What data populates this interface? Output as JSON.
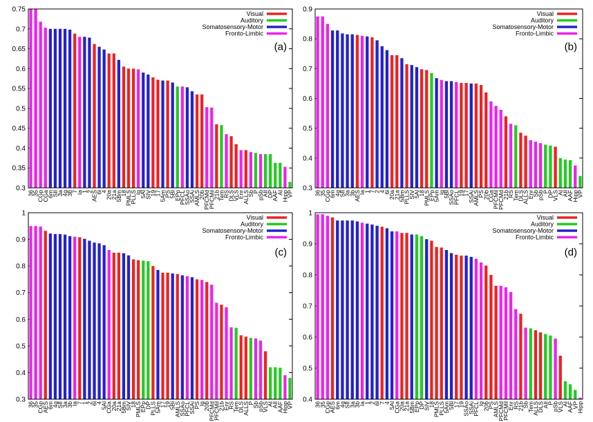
{
  "chart_data": [
    {
      "type": "bar",
      "label": "(a)",
      "legend_position": "upper right",
      "legend": [
        {
          "name": "Visual",
          "color": "#ee2222"
        },
        {
          "name": "Auditory",
          "color": "#22cc22"
        },
        {
          "name": "Somatosensory-Motor",
          "color": "#2222cc"
        },
        {
          "name": "Fronto-Limbic",
          "color": "#ee22ee"
        }
      ],
      "ylim": [
        0.3,
        0.75
      ],
      "yticks": [
        0.3,
        0.35,
        0.4,
        0.45,
        0.5,
        0.55,
        0.6,
        0.65,
        0.7,
        0.75
      ],
      "categories": [
        "36",
        "35",
        "CGp",
        "CGa",
        "6m",
        "SII",
        "3a",
        "4g",
        "3b",
        "7",
        "Ia",
        "1",
        "2",
        "AES",
        "6l",
        "4",
        "20a",
        "21a",
        "5Bm",
        "18",
        "PMLS",
        "PLLS",
        "Ig",
        "5Al",
        "SIV",
        "19",
        "17",
        "5Am",
        "PS",
        "5Bl",
        "EPp",
        "PFCL",
        "SSAo",
        "SSAi",
        "AMLS",
        "20b",
        "PFCMd",
        "PFCMil",
        "21b",
        "Tem",
        "RS",
        "DLS",
        "VLS",
        "Enr",
        "ALLS",
        "Sb",
        "P",
        "pSb",
        "AII",
        "DP",
        "AAF",
        "AI",
        "Hipp",
        "VP"
      ],
      "values": [
        0.75,
        0.75,
        0.718,
        0.703,
        0.7,
        0.7,
        0.7,
        0.7,
        0.698,
        0.688,
        0.68,
        0.68,
        0.678,
        0.662,
        0.655,
        0.648,
        0.638,
        0.638,
        0.622,
        0.605,
        0.6,
        0.6,
        0.598,
        0.59,
        0.585,
        0.578,
        0.572,
        0.57,
        0.57,
        0.565,
        0.555,
        0.555,
        0.553,
        0.543,
        0.535,
        0.535,
        0.503,
        0.502,
        0.46,
        0.458,
        0.435,
        0.43,
        0.41,
        0.395,
        0.395,
        0.39,
        0.388,
        0.385,
        0.385,
        0.385,
        0.363,
        0.363,
        0.353,
        0.315
      ],
      "colors": [
        "#ee22ee",
        "#ee22ee",
        "#ee22ee",
        "#ee22ee",
        "#2222cc",
        "#2222cc",
        "#2222cc",
        "#2222cc",
        "#2222cc",
        "#ee2222",
        "#ee22ee",
        "#2222cc",
        "#2222cc",
        "#ee2222",
        "#2222cc",
        "#2222cc",
        "#ee2222",
        "#ee2222",
        "#2222cc",
        "#ee2222",
        "#ee2222",
        "#ee2222",
        "#ee22ee",
        "#2222cc",
        "#2222cc",
        "#ee2222",
        "#ee2222",
        "#2222cc",
        "#ee2222",
        "#2222cc",
        "#22cc22",
        "#ee22ee",
        "#2222cc",
        "#2222cc",
        "#ee2222",
        "#ee2222",
        "#ee22ee",
        "#ee22ee",
        "#ee2222",
        "#22cc22",
        "#ee22ee",
        "#ee2222",
        "#ee2222",
        "#ee22ee",
        "#ee2222",
        "#ee22ee",
        "#22cc22",
        "#ee22ee",
        "#22cc22",
        "#22cc22",
        "#22cc22",
        "#22cc22",
        "#ee22ee",
        "#22cc22"
      ]
    },
    {
      "type": "bar",
      "label": "(b)",
      "legend_position": "upper right",
      "legend": [
        {
          "name": "Visual",
          "color": "#ee2222"
        },
        {
          "name": "Auditory",
          "color": "#22cc22"
        },
        {
          "name": "Somatosensory-Motor",
          "color": "#2222cc"
        },
        {
          "name": "Fronto-Limbic",
          "color": "#ee22ee"
        }
      ],
      "ylim": [
        0.3,
        0.9
      ],
      "yticks": [
        0.3,
        0.4,
        0.5,
        0.6,
        0.7,
        0.8,
        0.9
      ],
      "categories": [
        "36",
        "35",
        "CGp",
        "6m",
        "4g",
        "SII",
        "3a",
        "3b",
        "AES",
        "Ia",
        "1",
        "7",
        "2",
        "4",
        "6l",
        "20a",
        "21a",
        "5Bm",
        "PLLS",
        "SIV",
        "5Al",
        "18",
        "PMLS",
        "EPp",
        "5Am",
        "Ig",
        "5Bl",
        "SSAo",
        "PFCL",
        "19",
        "17",
        "SSAi",
        "AMLS",
        "PS",
        "20b",
        "CGa",
        "PFCMil",
        "PFCMd",
        "21b",
        "RS",
        "Tem",
        "DLS",
        "ALLS",
        "Enr",
        "Sb",
        "pSb",
        "P",
        "DP",
        "VLS",
        "AI",
        "AII",
        "AAF",
        "Hipp",
        "VP"
      ],
      "values": [
        0.875,
        0.875,
        0.85,
        0.828,
        0.828,
        0.818,
        0.815,
        0.815,
        0.813,
        0.81,
        0.808,
        0.805,
        0.795,
        0.775,
        0.762,
        0.745,
        0.745,
        0.735,
        0.715,
        0.712,
        0.705,
        0.698,
        0.695,
        0.685,
        0.668,
        0.662,
        0.658,
        0.658,
        0.655,
        0.652,
        0.652,
        0.65,
        0.65,
        0.645,
        0.62,
        0.59,
        0.575,
        0.562,
        0.54,
        0.515,
        0.51,
        0.485,
        0.475,
        0.46,
        0.455,
        0.45,
        0.445,
        0.442,
        0.438,
        0.4,
        0.395,
        0.393,
        0.375,
        0.34
      ],
      "colors": [
        "#ee22ee",
        "#ee22ee",
        "#ee22ee",
        "#2222cc",
        "#2222cc",
        "#2222cc",
        "#2222cc",
        "#2222cc",
        "#ee2222",
        "#ee22ee",
        "#2222cc",
        "#ee2222",
        "#2222cc",
        "#2222cc",
        "#2222cc",
        "#ee2222",
        "#ee2222",
        "#2222cc",
        "#ee2222",
        "#2222cc",
        "#2222cc",
        "#ee2222",
        "#ee2222",
        "#22cc22",
        "#2222cc",
        "#ee22ee",
        "#2222cc",
        "#2222cc",
        "#ee22ee",
        "#ee2222",
        "#ee2222",
        "#2222cc",
        "#ee2222",
        "#ee2222",
        "#ee2222",
        "#ee22ee",
        "#ee22ee",
        "#ee22ee",
        "#ee2222",
        "#ee22ee",
        "#22cc22",
        "#ee2222",
        "#ee2222",
        "#ee22ee",
        "#ee22ee",
        "#ee22ee",
        "#22cc22",
        "#22cc22",
        "#ee2222",
        "#22cc22",
        "#22cc22",
        "#22cc22",
        "#ee22ee",
        "#22cc22"
      ]
    },
    {
      "type": "bar",
      "label": "(c)",
      "legend_position": "upper right",
      "legend": [
        {
          "name": "Visual",
          "color": "#ee2222"
        },
        {
          "name": "Auditory",
          "color": "#22cc22"
        },
        {
          "name": "Somatosensory-Motor",
          "color": "#2222cc"
        },
        {
          "name": "Fronto-Limbic",
          "color": "#ee22ee"
        }
      ],
      "ylim": [
        0.3,
        1
      ],
      "yticks": [
        0.3,
        0.4,
        0.5,
        0.6,
        0.7,
        0.8,
        0.9,
        1
      ],
      "categories": [
        "36",
        "35",
        "CGp",
        "AES",
        "6m",
        "4g",
        "SII",
        "3a",
        "3b",
        "Ia",
        "7",
        "1",
        "2",
        "6l",
        "4",
        "5Al",
        "CGa",
        "20a",
        "21a",
        "5Bm",
        "SIV",
        "18",
        "PMLS",
        "EPp",
        "DP",
        "PLLS",
        "5Am",
        "17",
        "19",
        "5Bl",
        "AMLS",
        "SSAo",
        "PFCL",
        "SSAi",
        "PS",
        "Ig",
        "20b",
        "PFCMd",
        "PFCMil",
        "21b",
        "Enr",
        "RS",
        "Tem",
        "DLS",
        "ALLS",
        "P",
        "Sb",
        "pSb",
        "VLS",
        "AI",
        "AII",
        "AAF",
        "Hipp",
        "VP"
      ],
      "values": [
        0.95,
        0.95,
        0.948,
        0.932,
        0.922,
        0.92,
        0.92,
        0.918,
        0.912,
        0.91,
        0.908,
        0.902,
        0.895,
        0.888,
        0.885,
        0.878,
        0.86,
        0.85,
        0.85,
        0.848,
        0.84,
        0.825,
        0.822,
        0.82,
        0.818,
        0.8,
        0.785,
        0.775,
        0.775,
        0.772,
        0.77,
        0.765,
        0.762,
        0.758,
        0.75,
        0.748,
        0.74,
        0.73,
        0.662,
        0.655,
        0.645,
        0.57,
        0.568,
        0.54,
        0.535,
        0.53,
        0.528,
        0.52,
        0.48,
        0.42,
        0.42,
        0.418,
        0.39,
        0.38
      ],
      "colors": [
        "#ee22ee",
        "#ee22ee",
        "#ee22ee",
        "#ee2222",
        "#2222cc",
        "#2222cc",
        "#2222cc",
        "#2222cc",
        "#2222cc",
        "#ee22ee",
        "#ee2222",
        "#2222cc",
        "#2222cc",
        "#2222cc",
        "#2222cc",
        "#2222cc",
        "#ee22ee",
        "#ee2222",
        "#ee2222",
        "#2222cc",
        "#2222cc",
        "#ee2222",
        "#ee2222",
        "#22cc22",
        "#22cc22",
        "#ee2222",
        "#2222cc",
        "#ee2222",
        "#ee2222",
        "#2222cc",
        "#ee2222",
        "#2222cc",
        "#ee22ee",
        "#2222cc",
        "#ee2222",
        "#ee22ee",
        "#ee2222",
        "#ee22ee",
        "#ee22ee",
        "#ee2222",
        "#ee22ee",
        "#ee22ee",
        "#22cc22",
        "#ee2222",
        "#ee2222",
        "#22cc22",
        "#ee22ee",
        "#ee22ee",
        "#ee2222",
        "#22cc22",
        "#22cc22",
        "#22cc22",
        "#ee22ee",
        "#22cc22"
      ]
    },
    {
      "type": "bar",
      "label": "(d)",
      "legend_position": "upper right",
      "legend": [
        {
          "name": "Visual",
          "color": "#ee2222"
        },
        {
          "name": "Auditory",
          "color": "#22cc22"
        },
        {
          "name": "Somatosensory-Motor",
          "color": "#2222cc"
        },
        {
          "name": "Fronto-Limbic",
          "color": "#ee22ee"
        }
      ],
      "ylim": [
        0.4,
        1
      ],
      "yticks": [
        0.4,
        0.5,
        0.6,
        0.7,
        0.8,
        0.9,
        1
      ],
      "categories": [
        "36",
        "35",
        "CGp",
        "AES",
        "6m",
        "4g",
        "SII",
        "3a",
        "3b",
        "Ia",
        "1",
        "2",
        "6l",
        "7",
        "4",
        "5Al",
        "CGa",
        "20a",
        "21a",
        "5Bm",
        "EPp",
        "DP",
        "SIV",
        "18",
        "PMLS",
        "PLLS",
        "5Am",
        "5Bl",
        "17",
        "19",
        "SSAo",
        "SSAi",
        "PFCL",
        "Ig",
        "20b",
        "PS",
        "AMLS",
        "PFCMd",
        "PFCMil",
        "Enr",
        "RS",
        "21b",
        "Sb",
        "Tem",
        "ALLS",
        "DLS",
        "AII",
        "P",
        "pSb",
        "VLS",
        "AI",
        "AAF",
        "VP",
        "Hipp"
      ],
      "values": [
        0.995,
        0.995,
        0.99,
        0.985,
        0.975,
        0.975,
        0.975,
        0.975,
        0.972,
        0.968,
        0.965,
        0.962,
        0.958,
        0.955,
        0.95,
        0.94,
        0.94,
        0.935,
        0.935,
        0.93,
        0.93,
        0.925,
        0.915,
        0.91,
        0.89,
        0.888,
        0.88,
        0.87,
        0.865,
        0.862,
        0.862,
        0.858,
        0.852,
        0.84,
        0.83,
        0.8,
        0.765,
        0.765,
        0.76,
        0.745,
        0.69,
        0.675,
        0.63,
        0.628,
        0.622,
        0.615,
        0.61,
        0.605,
        0.595,
        0.54,
        0.458,
        0.448,
        0.43,
        0.405
      ],
      "colors": [
        "#ee22ee",
        "#ee22ee",
        "#ee22ee",
        "#ee2222",
        "#2222cc",
        "#2222cc",
        "#2222cc",
        "#2222cc",
        "#2222cc",
        "#ee22ee",
        "#2222cc",
        "#2222cc",
        "#2222cc",
        "#ee2222",
        "#2222cc",
        "#2222cc",
        "#ee22ee",
        "#ee2222",
        "#ee2222",
        "#2222cc",
        "#22cc22",
        "#22cc22",
        "#2222cc",
        "#ee2222",
        "#ee2222",
        "#ee2222",
        "#2222cc",
        "#2222cc",
        "#ee2222",
        "#ee2222",
        "#2222cc",
        "#2222cc",
        "#ee22ee",
        "#ee22ee",
        "#ee2222",
        "#ee2222",
        "#ee2222",
        "#ee22ee",
        "#ee22ee",
        "#ee22ee",
        "#ee22ee",
        "#ee2222",
        "#ee22ee",
        "#22cc22",
        "#ee2222",
        "#ee2222",
        "#22cc22",
        "#22cc22",
        "#ee22ee",
        "#ee2222",
        "#22cc22",
        "#22cc22",
        "#22cc22",
        "#ee22ee"
      ]
    }
  ]
}
